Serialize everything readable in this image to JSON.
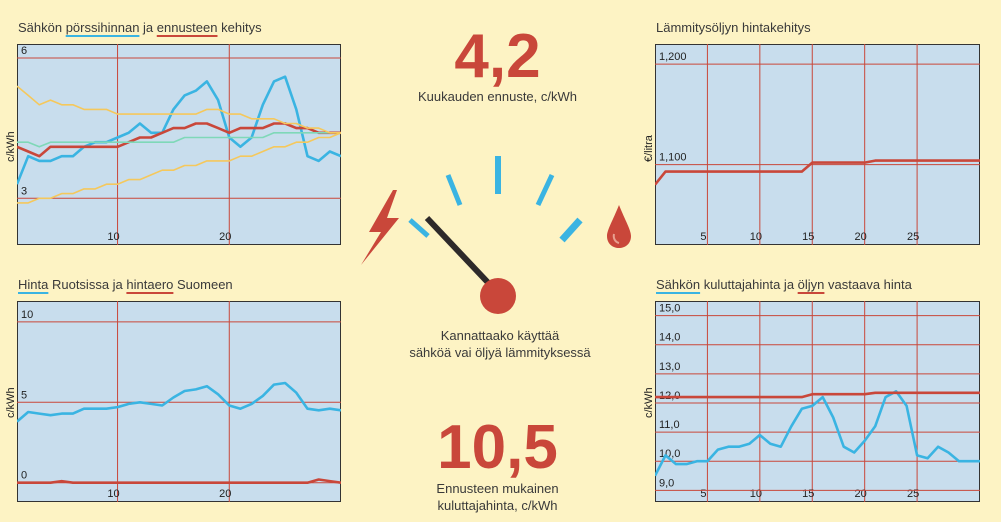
{
  "colors": {
    "background": "#fdf3c4",
    "plot_bg": "#c8dded",
    "grid": "#c9473a",
    "blue": "#3ab4e2",
    "red": "#c9473a",
    "yellow": "#f5c85c",
    "green": "#7fd8b8",
    "needle": "#2e2a2a"
  },
  "panels": {
    "top_left": {
      "title_parts": [
        "Sähkön ",
        "pörssihinnan",
        " ja ",
        "ennusteen",
        " kehitys"
      ],
      "ylabel": "c/kWh"
    },
    "bottom_left": {
      "title_parts": [
        "Hinta",
        " Ruotsissa ja ",
        "hintaero",
        " Suomeen"
      ],
      "ylabel": "c/kWh"
    },
    "top_right": {
      "title": "Lämmitysöljyn hintakehitys",
      "ylabel": "€/litra"
    },
    "bottom_right": {
      "title_parts": [
        "Sähkön",
        " kuluttajahinta ja ",
        "öljyn",
        " vastaava hinta"
      ],
      "ylabel": "c/kWh"
    }
  },
  "center": {
    "forecast_value": "4,2",
    "forecast_label": "Kuukauden ennuste, c/kWh",
    "question_line1": "Kannattaako käyttää",
    "question_line2": "sähköä vai öljyä lämmityksessä",
    "consumer_value": "10,5",
    "consumer_label_line1": "Ennusteen mukainen",
    "consumer_label_line2": "kuluttajahinta, c/kWh",
    "gauge": {
      "left_icon": "lightning-bolt-icon",
      "right_icon": "oil-drop-icon",
      "needle_position": 0.2
    }
  },
  "chart_data": [
    {
      "id": "top_left",
      "type": "line",
      "title": "Sähkön pörssihinnan ja ennusteen kehitys",
      "xlabel": "",
      "ylabel": "c/kWh",
      "xlim": [
        1,
        30
      ],
      "ylim": [
        2,
        6.3
      ],
      "x_ticks": [
        10,
        20
      ],
      "y_ticks": [
        3,
        6
      ],
      "grid": true,
      "x": [
        1,
        2,
        3,
        4,
        5,
        6,
        7,
        8,
        9,
        10,
        11,
        12,
        13,
        14,
        15,
        16,
        17,
        18,
        19,
        20,
        21,
        22,
        23,
        24,
        25,
        26,
        27,
        28,
        29,
        30
      ],
      "series": [
        {
          "color": "blue",
          "values": [
            3.3,
            3.9,
            3.8,
            3.8,
            3.9,
            3.9,
            4.1,
            4.2,
            4.2,
            4.3,
            4.4,
            4.6,
            4.4,
            4.4,
            4.9,
            5.2,
            5.3,
            5.5,
            5.1,
            4.3,
            4.1,
            4.3,
            5.0,
            5.5,
            5.6,
            4.9,
            3.9,
            3.8,
            4.0,
            3.9
          ]
        },
        {
          "color": "red",
          "values": [
            4.1,
            4.0,
            3.9,
            4.1,
            4.1,
            4.1,
            4.1,
            4.1,
            4.1,
            4.1,
            4.2,
            4.3,
            4.3,
            4.4,
            4.5,
            4.5,
            4.6,
            4.6,
            4.5,
            4.4,
            4.5,
            4.5,
            4.5,
            4.6,
            4.6,
            4.5,
            4.5,
            4.4,
            4.4,
            4.4
          ]
        },
        {
          "color": "green",
          "values": [
            4.2,
            4.2,
            4.1,
            4.2,
            4.2,
            4.2,
            4.2,
            4.2,
            4.2,
            4.2,
            4.2,
            4.2,
            4.2,
            4.2,
            4.2,
            4.3,
            4.3,
            4.3,
            4.3,
            4.3,
            4.3,
            4.3,
            4.3,
            4.4,
            4.4,
            4.4,
            4.4,
            4.4,
            4.4,
            4.4
          ]
        },
        {
          "color": "yellow",
          "values": [
            5.4,
            5.2,
            5.0,
            5.1,
            5.0,
            5.0,
            4.9,
            4.9,
            4.9,
            4.8,
            4.8,
            4.8,
            4.8,
            4.8,
            4.8,
            4.8,
            4.8,
            4.9,
            4.9,
            4.8,
            4.8,
            4.7,
            4.7,
            4.7,
            4.6,
            4.6,
            4.5,
            4.5,
            4.4,
            4.4
          ]
        },
        {
          "color": "yellow",
          "values": [
            2.9,
            2.9,
            3.0,
            3.0,
            3.1,
            3.1,
            3.2,
            3.2,
            3.3,
            3.3,
            3.4,
            3.4,
            3.5,
            3.6,
            3.6,
            3.7,
            3.7,
            3.8,
            3.8,
            3.8,
            3.9,
            3.9,
            4.0,
            4.1,
            4.1,
            4.2,
            4.2,
            4.3,
            4.3,
            4.4
          ]
        }
      ]
    },
    {
      "id": "bottom_left",
      "type": "line",
      "title": "Hinta Ruotsissa ja hintaero Suomeen",
      "xlabel": "",
      "ylabel": "c/kWh",
      "xlim": [
        1,
        30
      ],
      "ylim": [
        -1.2,
        11.3
      ],
      "x_ticks": [
        10,
        20
      ],
      "y_ticks": [
        0,
        5,
        10
      ],
      "grid": true,
      "x": [
        1,
        2,
        3,
        4,
        5,
        6,
        7,
        8,
        9,
        10,
        11,
        12,
        13,
        14,
        15,
        16,
        17,
        18,
        19,
        20,
        21,
        22,
        23,
        24,
        25,
        26,
        27,
        28,
        29,
        30
      ],
      "series": [
        {
          "color": "blue",
          "values": [
            3.8,
            4.4,
            4.3,
            4.2,
            4.3,
            4.3,
            4.6,
            4.6,
            4.6,
            4.7,
            4.9,
            5.0,
            4.9,
            4.8,
            5.3,
            5.7,
            5.8,
            6.0,
            5.5,
            4.8,
            4.6,
            4.9,
            5.4,
            6.1,
            6.2,
            5.6,
            4.6,
            4.5,
            4.6,
            4.5
          ]
        },
        {
          "color": "red",
          "values": [
            0,
            0,
            0,
            0,
            0.1,
            0,
            0,
            0,
            0,
            0,
            0,
            0,
            0,
            0,
            0,
            0,
            0,
            0,
            0,
            0,
            0,
            0,
            0,
            0,
            0,
            0,
            0,
            0.2,
            0.1,
            0
          ]
        }
      ]
    },
    {
      "id": "top_right",
      "type": "line",
      "title": "Lämmitysöljyn hintakehitys",
      "xlabel": "",
      "ylabel": "€/litra",
      "xlim": [
        0,
        31
      ],
      "ylim": [
        1.02,
        1.22
      ],
      "x_ticks": [
        5,
        10,
        15,
        20,
        25
      ],
      "y_ticks": [
        1.1,
        1.2
      ],
      "y_tick_labels": [
        "1,100",
        "1,200"
      ],
      "grid": true,
      "x": [
        0,
        1,
        2,
        3,
        4,
        5,
        6,
        7,
        8,
        9,
        10,
        11,
        12,
        13,
        14,
        15,
        16,
        17,
        18,
        19,
        20,
        21,
        22,
        23,
        24,
        25,
        26,
        27,
        28,
        29,
        30,
        31
      ],
      "series": [
        {
          "color": "red",
          "values": [
            1.08,
            1.093,
            1.093,
            1.093,
            1.093,
            1.093,
            1.093,
            1.093,
            1.093,
            1.093,
            1.093,
            1.093,
            1.093,
            1.093,
            1.093,
            1.102,
            1.102,
            1.102,
            1.102,
            1.102,
            1.102,
            1.104,
            1.104,
            1.104,
            1.104,
            1.104,
            1.104,
            1.104,
            1.104,
            1.104,
            1.104,
            1.104
          ]
        }
      ]
    },
    {
      "id": "bottom_right",
      "type": "line",
      "title": "Sähkön kuluttajahinta ja öljyn vastaava hinta",
      "xlabel": "",
      "ylabel": "c/kWh",
      "xlim": [
        0,
        31
      ],
      "ylim": [
        8.6,
        15.5
      ],
      "x_ticks": [
        5,
        10,
        15,
        20,
        25
      ],
      "y_ticks": [
        9,
        10,
        11,
        12,
        13,
        14,
        15
      ],
      "y_tick_labels": [
        "9,0",
        "10,0",
        "11,0",
        "12,0",
        "13,0",
        "14,0",
        "15,0"
      ],
      "grid": true,
      "x": [
        0,
        1,
        2,
        3,
        4,
        5,
        6,
        7,
        8,
        9,
        10,
        11,
        12,
        13,
        14,
        15,
        16,
        17,
        18,
        19,
        20,
        21,
        22,
        23,
        24,
        25,
        26,
        27,
        28,
        29,
        30,
        31
      ],
      "series": [
        {
          "color": "blue",
          "values": [
            9.5,
            10.2,
            9.9,
            9.9,
            10.0,
            10.0,
            10.4,
            10.5,
            10.5,
            10.6,
            10.9,
            10.6,
            10.5,
            11.2,
            11.8,
            11.9,
            12.2,
            11.5,
            10.5,
            10.3,
            10.7,
            11.2,
            12.2,
            12.4,
            11.9,
            10.2,
            10.1,
            10.5,
            10.3,
            10.0,
            10.0,
            10.0
          ]
        },
        {
          "color": "red",
          "values": [
            12.2,
            12.2,
            12.2,
            12.2,
            12.2,
            12.2,
            12.2,
            12.2,
            12.2,
            12.2,
            12.2,
            12.2,
            12.2,
            12.2,
            12.2,
            12.3,
            12.3,
            12.3,
            12.3,
            12.3,
            12.3,
            12.35,
            12.35,
            12.35,
            12.35,
            12.35,
            12.35,
            12.35,
            12.35,
            12.35,
            12.35,
            12.35
          ]
        }
      ]
    }
  ]
}
